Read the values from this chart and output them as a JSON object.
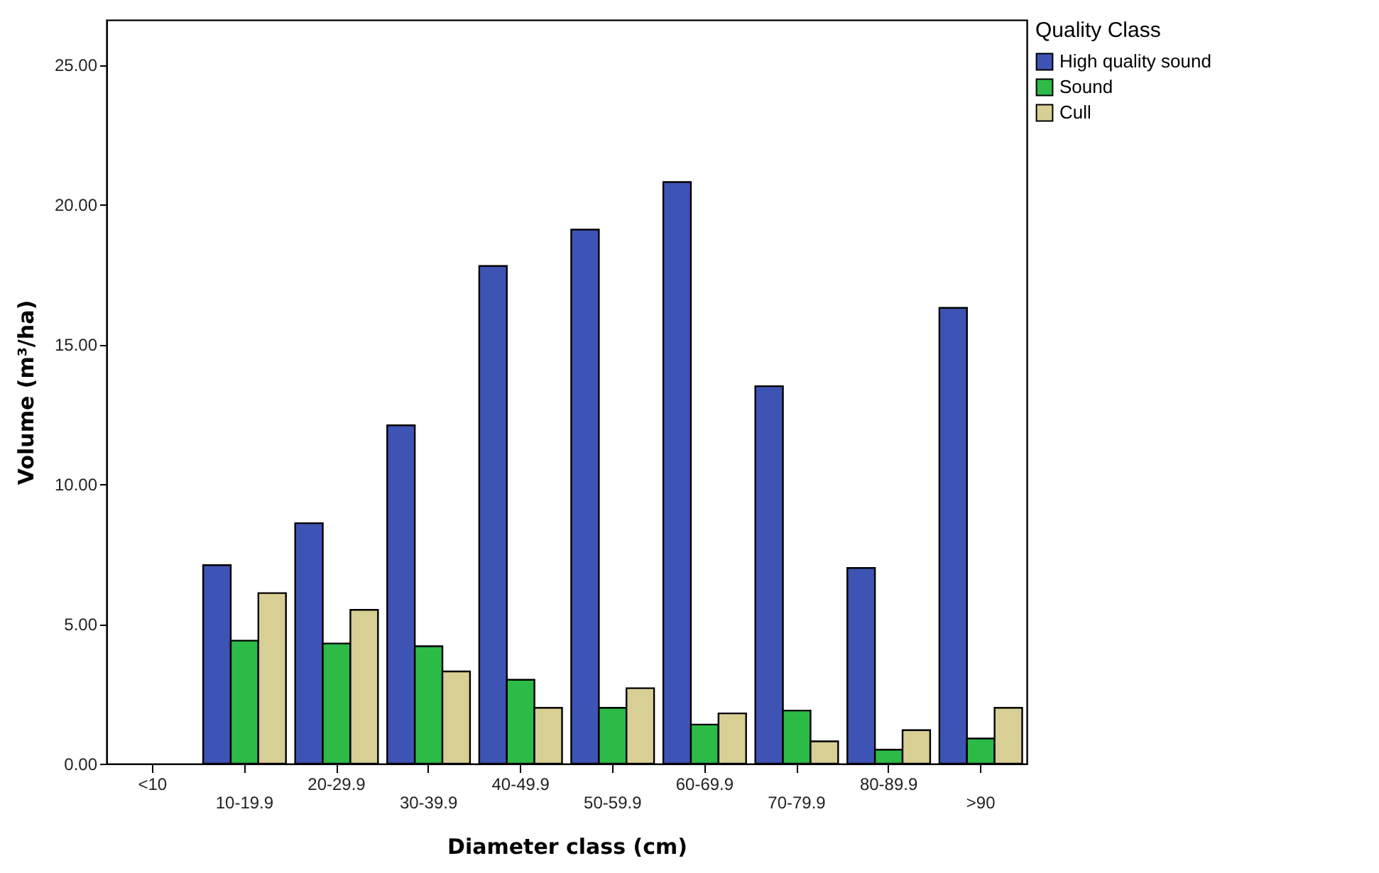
{
  "chart_data": {
    "type": "bar",
    "xlabel": "Diameter class (cm)",
    "ylabel": "Volume (m³/ha)",
    "legend_title": "Quality Class",
    "categories": [
      "<10",
      "10-19.9",
      "20-29.9",
      "30-39.9",
      "40-49.9",
      "50-59.9",
      "60-69.9",
      "70-79.9",
      "80-89.9",
      ">90"
    ],
    "series": [
      {
        "name": "High quality sound",
        "color": "#3e54b4",
        "values": [
          null,
          7.1,
          8.6,
          12.1,
          17.8,
          19.1,
          20.8,
          13.5,
          7.0,
          16.3
        ]
      },
      {
        "name": "Sound",
        "color": "#2dbb47",
        "values": [
          null,
          4.4,
          4.3,
          4.2,
          3.0,
          2.0,
          1.4,
          1.9,
          0.5,
          0.9
        ]
      },
      {
        "name": "Cull",
        "color": "#d8cf94",
        "values": [
          null,
          6.1,
          5.5,
          3.3,
          2.0,
          2.7,
          1.8,
          0.8,
          1.2,
          2.0
        ]
      }
    ],
    "ylim": [
      0,
      26.6
    ],
    "yticks": [
      {
        "value": 0,
        "label": "0.00"
      },
      {
        "value": 5,
        "label": "5.00"
      },
      {
        "value": 10,
        "label": "10.00"
      },
      {
        "value": 15,
        "label": "15.00"
      },
      {
        "value": 20,
        "label": "20.00"
      },
      {
        "value": 25,
        "label": "25.00"
      }
    ],
    "legend": "top right",
    "grid": false
  }
}
